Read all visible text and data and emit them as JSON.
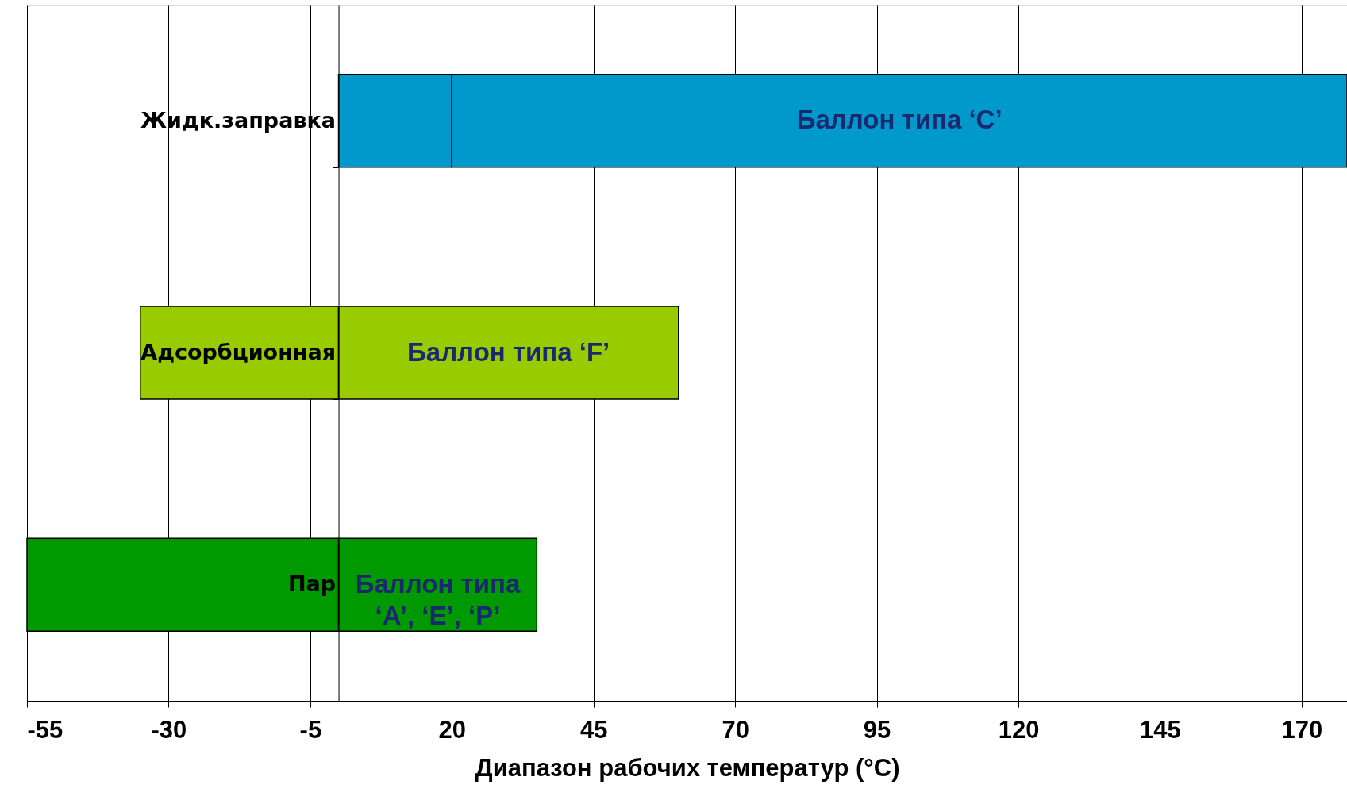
{
  "chart_data": {
    "type": "bar",
    "orientation": "horizontal",
    "categories": [
      "Жидк.заправка",
      "Адсорбционная",
      "Пар"
    ],
    "series": [
      {
        "base": [
          0,
          -35,
          -55
        ],
        "values": [
          20,
          35,
          55
        ],
        "colors": [
          "#0099cc",
          "#99cc00",
          "#009900"
        ]
      },
      {
        "base": [
          20,
          0,
          0
        ],
        "values": [
          158,
          60,
          35
        ],
        "colors": [
          "#0099cc",
          "#99cc00",
          "#009900"
        ],
        "value_labels": [
          "Баллон типа ‘C’",
          "Баллон типа ‘F’",
          "Баллон типа\n‘A’, ‘E’, ‘P’"
        ]
      }
    ],
    "xlabel": "Диапазон рабочих температур (°C)",
    "xlim": [
      -55,
      178
    ],
    "xticks": [
      -55,
      -30,
      -5,
      20,
      45,
      70,
      95,
      120,
      145,
      170
    ],
    "grid": "x"
  }
}
